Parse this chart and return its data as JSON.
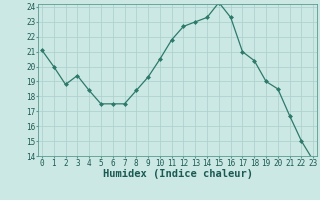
{
  "x": [
    0,
    1,
    2,
    3,
    4,
    5,
    6,
    7,
    8,
    9,
    10,
    11,
    12,
    13,
    14,
    15,
    16,
    17,
    18,
    19,
    20,
    21,
    22,
    23
  ],
  "y": [
    21.1,
    20.0,
    18.8,
    19.4,
    18.4,
    17.5,
    17.5,
    17.5,
    18.4,
    19.3,
    20.5,
    21.8,
    22.7,
    23.0,
    23.3,
    24.3,
    23.3,
    21.0,
    20.4,
    19.0,
    18.5,
    16.7,
    15.0,
    13.7
  ],
  "xlabel": "Humidex (Indice chaleur)",
  "ylim": [
    14,
    24
  ],
  "xlim": [
    -0.3,
    23.3
  ],
  "yticks": [
    14,
    15,
    16,
    17,
    18,
    19,
    20,
    21,
    22,
    23,
    24
  ],
  "xticks": [
    0,
    1,
    2,
    3,
    4,
    5,
    6,
    7,
    8,
    9,
    10,
    11,
    12,
    13,
    14,
    15,
    16,
    17,
    18,
    19,
    20,
    21,
    22,
    23
  ],
  "line_color": "#2d7a6b",
  "marker_color": "#2d7a6b",
  "bg_color": "#cce8e4",
  "grid_color": "#aacfcb",
  "tick_label_fontsize": 5.5,
  "xlabel_fontsize": 7.5
}
